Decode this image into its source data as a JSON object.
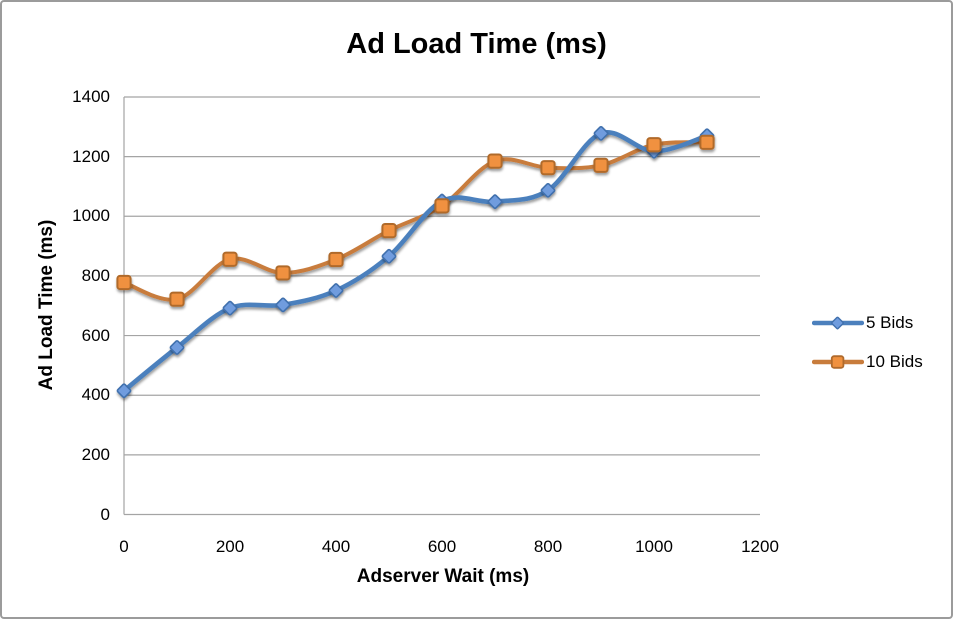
{
  "chart_data": {
    "type": "line",
    "title": "Ad Load Time (ms)",
    "xlabel": "Adserver Wait (ms)",
    "ylabel": "Ad Load Time (ms)",
    "x": [
      0,
      100,
      200,
      300,
      400,
      500,
      600,
      700,
      800,
      900,
      1000,
      1100
    ],
    "series": [
      {
        "name": "5 Bids",
        "marker": "diamond",
        "color": "#4C80BD",
        "marker_fill": "#6F9CDE",
        "marker_stroke": "#4070AD",
        "values": [
          415,
          560,
          692,
          703,
          751,
          866,
          1051,
          1049,
          1087,
          1278,
          1218,
          1270
        ]
      },
      {
        "name": "10 Bids",
        "marker": "square",
        "color": "#C87C3C",
        "marker_fill": "#F0913F",
        "marker_stroke": "#B06A2C",
        "values": [
          778,
          722,
          856,
          810,
          855,
          952,
          1035,
          1185,
          1163,
          1171,
          1240,
          1248
        ]
      }
    ],
    "xlim": [
      0,
      1200
    ],
    "ylim": [
      0,
      1400
    ],
    "xticks": [
      0,
      200,
      400,
      600,
      800,
      1000,
      1200
    ],
    "yticks": [
      0,
      200,
      400,
      600,
      800,
      1000,
      1200,
      1400
    ],
    "grid": "horizontal",
    "gridline_color": "#A4A4A4",
    "border_color": "#9B9B9B",
    "legend_position": "right",
    "smooth": true
  }
}
